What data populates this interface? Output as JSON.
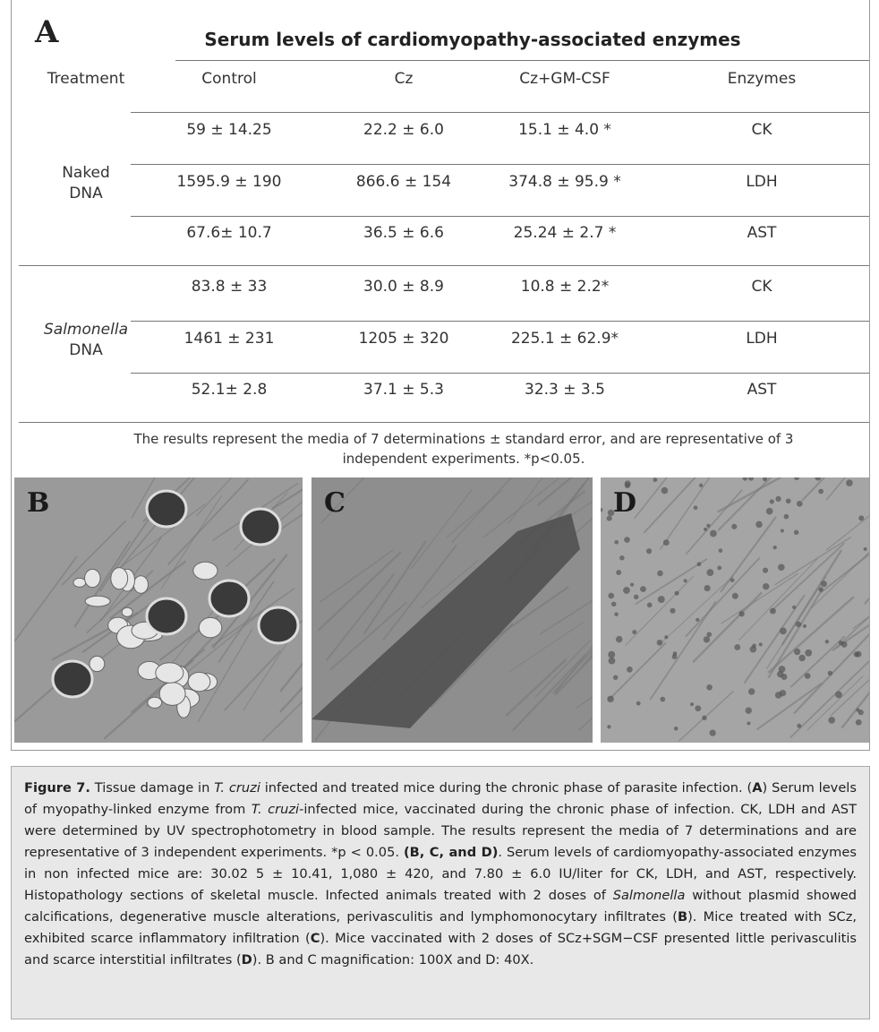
{
  "panel_a": {
    "label": "A",
    "title": "Serum levels of cardiomyopathy-associated enzymes",
    "columns": [
      "Treatment",
      "Control",
      "Cz",
      "Cz+GM-CSF",
      "Enzymes"
    ],
    "groups": [
      {
        "treatment": [
          {
            "text": "Naked",
            "style": "normal"
          },
          {
            "text": "DNA",
            "style": "normal"
          }
        ],
        "rows": [
          [
            "59 ± 14.25",
            "22.2 ± 6.0",
            "15.1 ± 4.0 *",
            "CK"
          ],
          [
            "1595.9 ± 190",
            "866.6 ± 154",
            "374.8 ± 95.9 *",
            "LDH"
          ],
          [
            "67.6± 10.7",
            "36.5 ± 6.6",
            "25.24 ± 2.7 *",
            "AST"
          ]
        ]
      },
      {
        "treatment": [
          {
            "text": "Salmonella",
            "style": "italic"
          },
          {
            "text": "DNA",
            "style": "normal"
          }
        ],
        "rows": [
          [
            "83.8 ± 33",
            "30.0 ± 8.9",
            "10.8 ± 2.2*",
            "CK"
          ],
          [
            "1461 ± 231",
            "1205 ± 320",
            "225.1 ± 62.9*",
            "LDH"
          ],
          [
            "52.1± 2.8",
            "37.1 ± 5.3",
            "32.3 ± 3.5",
            "AST"
          ]
        ]
      }
    ],
    "footnote": "The results represent the media of 7 determinations ± standard error, and are representative of 3 independent experiments. *p<0.05."
  },
  "panels": [
    "B",
    "C",
    "D"
  ],
  "caption": [
    {
      "text": "Figure 7.",
      "style": "bold"
    },
    {
      "text": " Tissue damage in ",
      "style": "normal"
    },
    {
      "text": "T. cruzi",
      "style": "italic"
    },
    {
      "text": " infected and treated mice during the chronic phase of parasite infection. (",
      "style": "normal"
    },
    {
      "text": "A",
      "style": "bold"
    },
    {
      "text": ") Serum levels of myopathy-linked enzyme from ",
      "style": "normal"
    },
    {
      "text": "T. cruzi",
      "style": "italic"
    },
    {
      "text": "-infected mice, vaccinated during the chronic phase of infection. CK, LDH and AST were determined by UV spectrophotometry in blood sample. The results represent the media of 7 determinations and are representative of 3 independent experiments. *p < 0.05. ",
      "style": "normal"
    },
    {
      "text": "(B, C, and D)",
      "style": "bold"
    },
    {
      "text": ". Serum levels of cardiomyopathy-associated enzymes in non infected mice are: 30.02 5 ± 10.41, 1,080 ± 420, and 7.80 ± 6.0 IU/liter for CK, LDH, and AST, respectively. Histopathology sections of skeletal muscle. Infected animals treated with 2 doses of ",
      "style": "normal"
    },
    {
      "text": "Salmonella",
      "style": "italic"
    },
    {
      "text": " without plasmid showed calcifications, degenerative muscle alterations, perivasculitis and lymphomonocytary infiltrates (",
      "style": "normal"
    },
    {
      "text": "B",
      "style": "bold"
    },
    {
      "text": "). Mice treated with SCz, exhibited scarce inflammatory infiltration (",
      "style": "normal"
    },
    {
      "text": "C",
      "style": "bold"
    },
    {
      "text": "). Mice vaccinated with 2 doses of SCz+SGM−CSF presented little perivasculitis and scarce interstitial infiltrates (",
      "style": "normal"
    },
    {
      "text": "D",
      "style": "bold"
    },
    {
      "text": "). B and C magnification: 100X and D: 40X.",
      "style": "normal"
    }
  ]
}
